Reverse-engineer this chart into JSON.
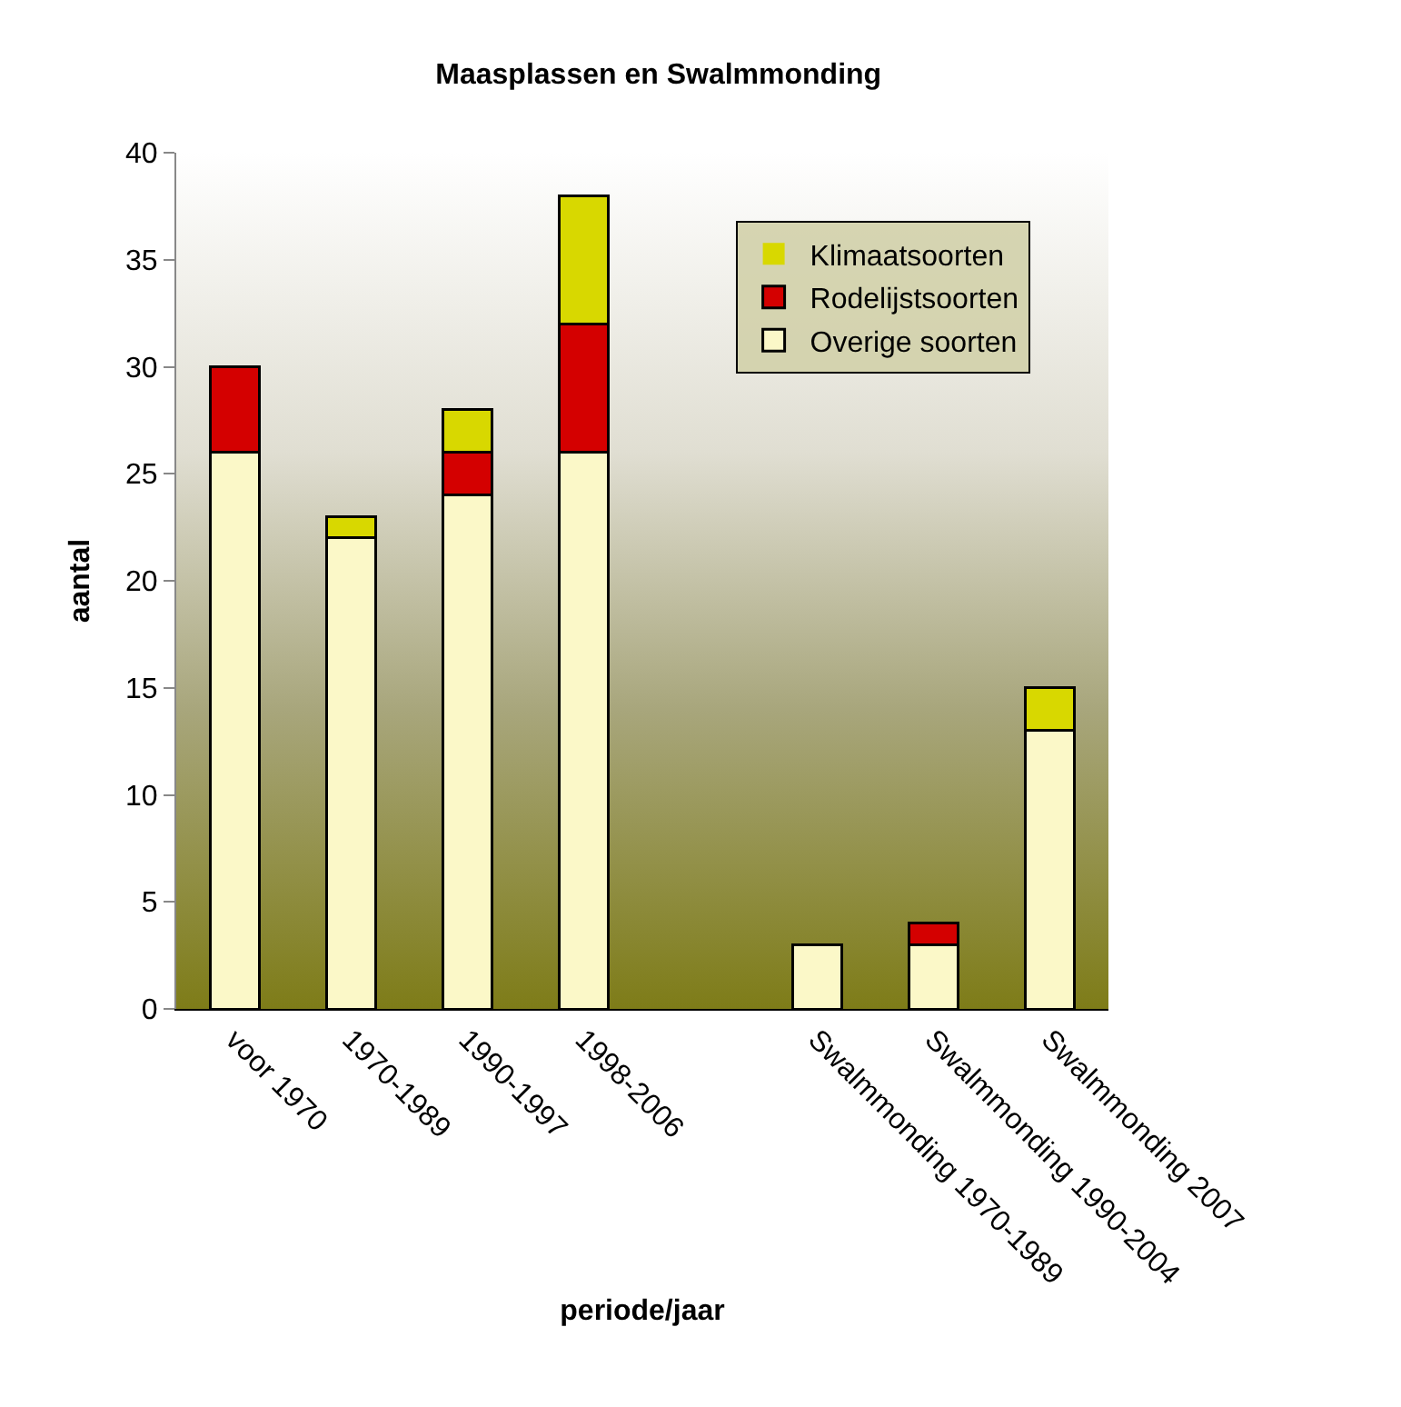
{
  "chart_data": {
    "type": "bar",
    "title": "Maasplassen en Swalmmonding",
    "xlabel": "periode/jaar",
    "ylabel": "aantal",
    "categories": [
      "voor 1970",
      "1970-1989",
      "1990-1997",
      "1998-2006",
      null,
      "Swalmmonding 1970-1989",
      "Swalmmonding 1990-2004",
      "Swalmmonding 2007"
    ],
    "stacked": true,
    "series": [
      {
        "name": "Overige soorten",
        "color": "#fbf8c8",
        "values": [
          26,
          22,
          24,
          26,
          null,
          3,
          3,
          13
        ]
      },
      {
        "name": "Rodelijstsoorten",
        "color": "#d40000",
        "values": [
          4,
          0,
          2,
          6,
          null,
          0,
          1,
          0
        ]
      },
      {
        "name": "Klimaatsoorten",
        "color": "#d8d800",
        "values": [
          0,
          1,
          2,
          6,
          null,
          0,
          0,
          2
        ]
      }
    ],
    "ylim": [
      0,
      40
    ],
    "yticks": [
      0,
      5,
      10,
      15,
      20,
      25,
      30,
      35,
      40
    ],
    "grid": false,
    "legend": "top right"
  }
}
